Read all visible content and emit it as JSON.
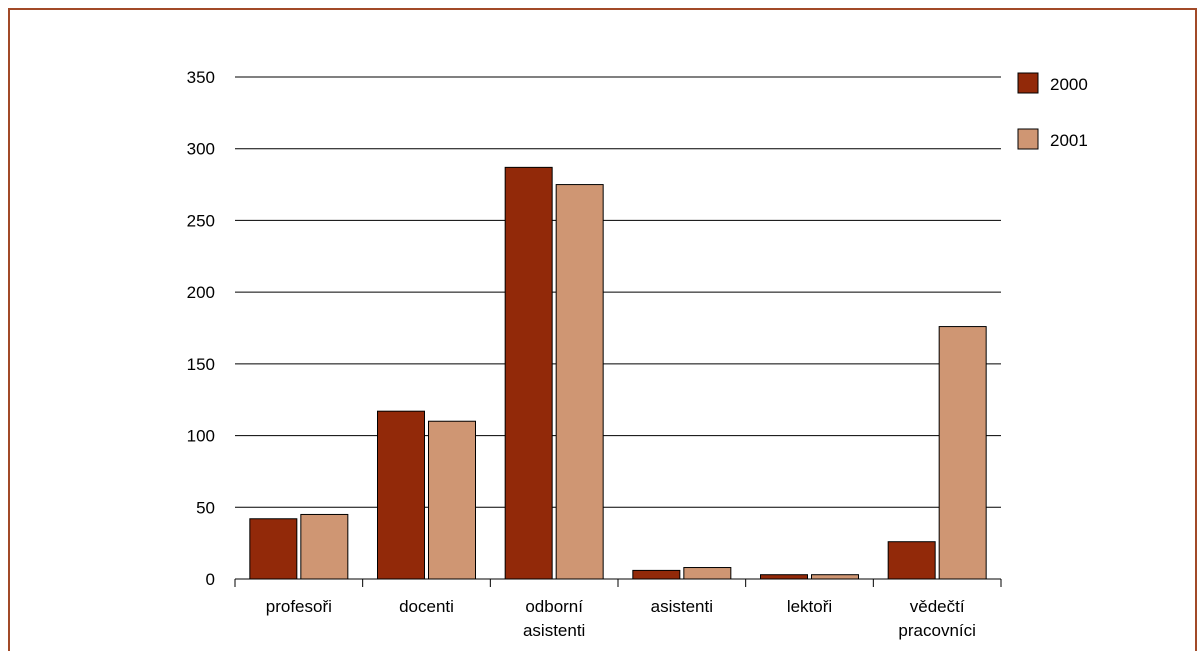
{
  "chart_data": {
    "type": "bar",
    "categories": [
      "profesoři",
      "docenti",
      "odborní asistenti",
      "asistenti",
      "lektoři",
      "vědečtí pracovníci"
    ],
    "series": [
      {
        "name": "2000",
        "color": "#922909",
        "values": [
          42,
          117,
          287,
          6,
          3,
          26
        ]
      },
      {
        "name": "2001",
        "color": "#cf9673",
        "values": [
          45,
          110,
          275,
          8,
          3,
          176
        ]
      }
    ],
    "ylim": [
      0,
      350
    ],
    "yticks": [
      0,
      50,
      100,
      150,
      200,
      250,
      300,
      350
    ],
    "grid": true,
    "legend": "right"
  }
}
